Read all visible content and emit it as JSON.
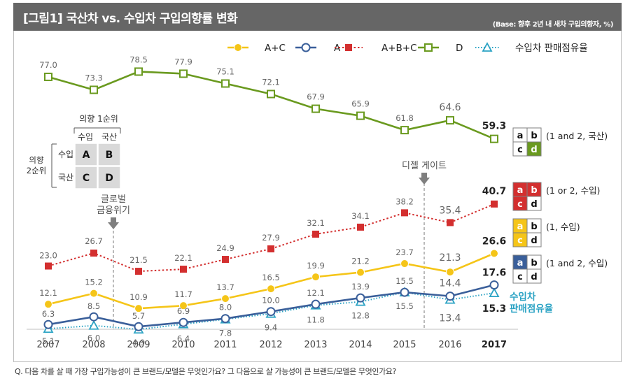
{
  "header": {
    "title": "[그림1] 국산차 vs. 수입차 구입의향률 변화",
    "subtitle": "(Base: 향후 2년 내 새차 구입의향자, %)"
  },
  "footer": {
    "question": "Q. 다음 차를 살 때 가장 구입가능성이 큰 브랜드/모델은 무엇인가요? 그 다음으로 살 가능성이 큰 브랜드/모델은 무엇인가요?"
  },
  "chart_data": {
    "type": "line",
    "categories": [
      "2007",
      "2008",
      "2009",
      "2010",
      "2011",
      "2012",
      "2013",
      "2014",
      "2015",
      "2016",
      "2017"
    ],
    "series": [
      {
        "name": "A+C",
        "color": "#F5C518",
        "marker": "circle-filled",
        "dash": "solid",
        "values": [
          12.1,
          15.2,
          10.9,
          11.7,
          13.7,
          16.5,
          19.9,
          21.2,
          23.7,
          21.3,
          26.6
        ]
      },
      {
        "name": "A",
        "color": "#3A5F9A",
        "marker": "circle-open",
        "dash": "solid",
        "values": [
          6.3,
          8.5,
          5.7,
          6.9,
          8.0,
          10.0,
          12.1,
          13.9,
          15.5,
          14.4,
          17.6
        ]
      },
      {
        "name": "A+B+C",
        "color": "#D32F2F",
        "marker": "square-filled",
        "dash": "dotted",
        "values": [
          23.0,
          26.7,
          21.5,
          22.1,
          24.9,
          27.9,
          32.1,
          34.1,
          38.2,
          35.4,
          40.7
        ]
      },
      {
        "name": "D",
        "color": "#6A9A1F",
        "marker": "square-open",
        "dash": "solid",
        "values": [
          77.0,
          73.3,
          78.5,
          77.9,
          75.1,
          72.1,
          67.9,
          65.9,
          61.8,
          64.6,
          59.3
        ]
      },
      {
        "name": "수입차 판매점유율",
        "color": "#2BA3C4",
        "marker": "triangle-open",
        "dash": "dotted",
        "values": [
          5.1,
          6.0,
          4.9,
          6.4,
          7.8,
          9.4,
          11.8,
          12.8,
          15.5,
          13.4,
          15.3
        ]
      }
    ],
    "annotations": {
      "global_crisis": "글로벌 금융위기",
      "diesel_gate": "디젤 게이트",
      "share_label": "수입차 판매점유율"
    },
    "matrix": {
      "title": "의향 1순위",
      "row_title": "의향 2순위",
      "col_labels": [
        "수입",
        "국산"
      ],
      "row_labels": [
        "수입",
        "국산"
      ],
      "cells": [
        "A",
        "B",
        "C",
        "D"
      ]
    },
    "legend_boxes": [
      {
        "label": "(1 and 2, 국산)",
        "highlight": [
          "d"
        ],
        "color": "#6A9A1F"
      },
      {
        "label": "(1 or 2, 수입)",
        "highlight": [
          "a",
          "b",
          "c"
        ],
        "color": "#D32F2F"
      },
      {
        "label": "(1, 수입)",
        "highlight": [
          "a",
          "c"
        ],
        "color": "#F5C518"
      },
      {
        "label": "(1 and 2, 수입)",
        "highlight": [
          "a"
        ],
        "color": "#3A5F9A"
      }
    ],
    "legend_cells": [
      "a",
      "b",
      "c",
      "d"
    ]
  }
}
